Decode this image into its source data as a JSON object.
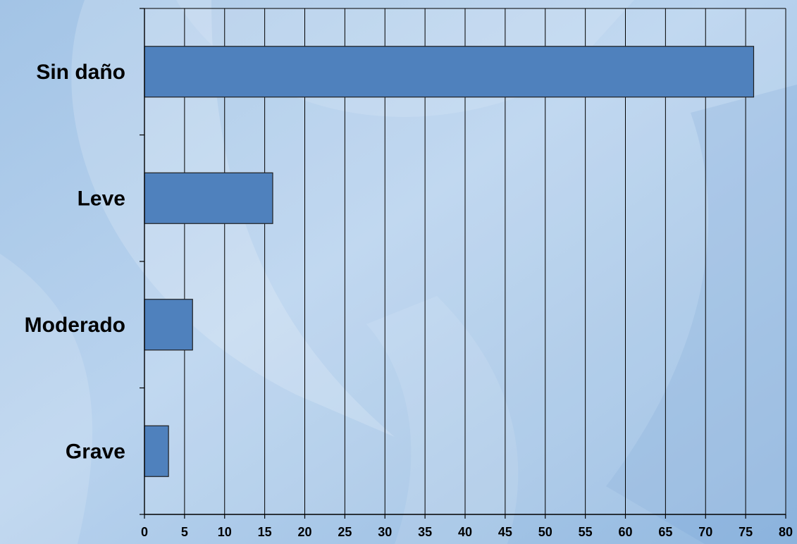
{
  "chart_data": {
    "type": "bar",
    "orientation": "horizontal",
    "categories": [
      "Sin daño",
      "Leve",
      "Moderado",
      "Grave"
    ],
    "values": [
      76,
      16,
      6,
      3
    ],
    "title": "",
    "xlabel": "",
    "ylabel": "",
    "xlim": [
      0,
      80
    ],
    "x_ticks": [
      "0",
      "5",
      "10",
      "15",
      "20",
      "25",
      "30",
      "35",
      "40",
      "45",
      "50",
      "55",
      "60",
      "65",
      "70",
      "75",
      "80"
    ],
    "grid": "vertical",
    "legend": "none"
  },
  "colors": {
    "background": "#a9c9e8",
    "background_light": "#d3e4f3",
    "bar_fill": "#4f81bd",
    "bar_stroke": "#1f1f1f",
    "axis": "#000000",
    "text": "#000000"
  }
}
